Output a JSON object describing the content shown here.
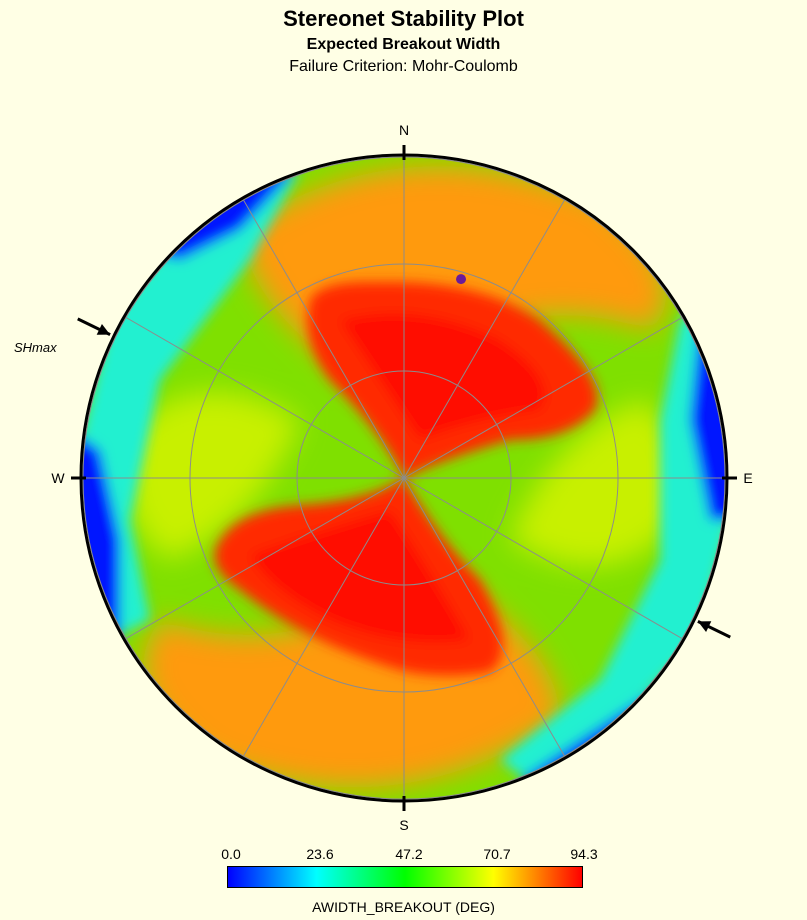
{
  "title": "Stereonet Stability Plot",
  "subtitle": "Expected Breakout Width",
  "criterion": "Failure Criterion: Mohr-Coulomb",
  "directions": {
    "n": "N",
    "s": "S",
    "e": "E",
    "w": "W"
  },
  "shmax_label": "SHmax",
  "colorbar": {
    "title": "AWIDTH_BREAKOUT (DEG)",
    "ticks": [
      "0.0",
      "23.6",
      "47.2",
      "70.7",
      "94.3"
    ],
    "stops": [
      "#0000ff",
      "#00ffff",
      "#00ff00",
      "#ffff00",
      "#ff0000"
    ]
  },
  "chart_data": {
    "type": "heatmap",
    "projection": "stereonet (lower hemisphere)",
    "title": "Stereonet Stability Plot",
    "subtitle": "Expected Breakout Width",
    "criterion": "Failure Criterion: Mohr-Coulomb",
    "variable": "AWIDTH_BREAKOUT (DEG)",
    "range": [
      0.0,
      94.3
    ],
    "shmax_azimuth_deg": 296,
    "highlighted_point": {
      "azimuth_deg": 16,
      "inclination_deg": 58,
      "color": "#6a1b9a"
    },
    "rings_inclination_deg": [
      30,
      60,
      90
    ],
    "spokes_every_deg": 30
  }
}
